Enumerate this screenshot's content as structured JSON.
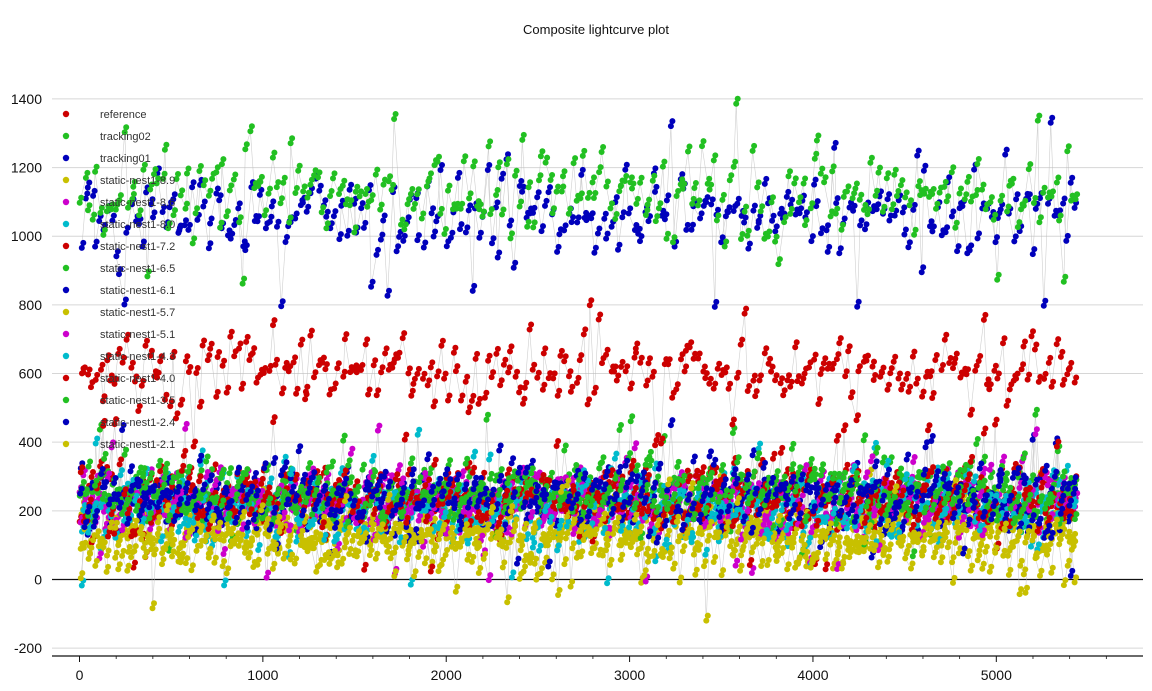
{
  "chart_data": {
    "type": "scatter",
    "title": "Composite lightcurve plot",
    "xlabel": "",
    "ylabel": "",
    "xlim": [
      -150,
      5800
    ],
    "ylim": [
      -220,
      1560
    ],
    "xticks": [
      0,
      1000,
      2000,
      3000,
      4000,
      5000
    ],
    "yticks": [
      -200,
      0,
      200,
      400,
      600,
      800,
      1000,
      1200,
      1400
    ],
    "x_range_data": [
      0,
      5440
    ],
    "grid": true,
    "legend_position": "top-left",
    "series": [
      {
        "name": "reference",
        "color": "#cc0000",
        "center": 600,
        "spread": 90
      },
      {
        "name": "tracking02",
        "color": "#22c022",
        "center": 1120,
        "spread": 110
      },
      {
        "name": "tracking01",
        "color": "#0000bb",
        "center": 1060,
        "spread": 110
      },
      {
        "name": "static-nest1-8.9",
        "color": "#c8c000",
        "center": 150,
        "spread": 70
      },
      {
        "name": "static-nest1-8.6",
        "color": "#cc00cc",
        "center": 220,
        "spread": 90
      },
      {
        "name": "static-nest1-8.0",
        "color": "#00bbcc",
        "center": 200,
        "spread": 90
      },
      {
        "name": "static-nest1-7.2",
        "color": "#cc0000",
        "center": 240,
        "spread": 90
      },
      {
        "name": "static-nest1-6.5",
        "color": "#22c022",
        "center": 260,
        "spread": 90
      },
      {
        "name": "static-nest1-6.1",
        "color": "#0000bb",
        "center": 220,
        "spread": 90
      },
      {
        "name": "static-nest1-5.7",
        "color": "#c8c000",
        "center": 120,
        "spread": 70
      },
      {
        "name": "static-nest1-5.1",
        "color": "#cc00cc",
        "center": 210,
        "spread": 90
      },
      {
        "name": "static-nest1-4.3",
        "color": "#00bbcc",
        "center": 200,
        "spread": 90
      },
      {
        "name": "static-nest1-4.0",
        "color": "#cc0000",
        "center": 230,
        "spread": 90
      },
      {
        "name": "static-nest1-3.5",
        "color": "#22c022",
        "center": 250,
        "spread": 90
      },
      {
        "name": "static-nest1-2.4",
        "color": "#0000bb",
        "center": 230,
        "spread": 90
      },
      {
        "name": "static-nest1-2.1",
        "color": "#c8c000",
        "center": 90,
        "spread": 90
      }
    ]
  }
}
